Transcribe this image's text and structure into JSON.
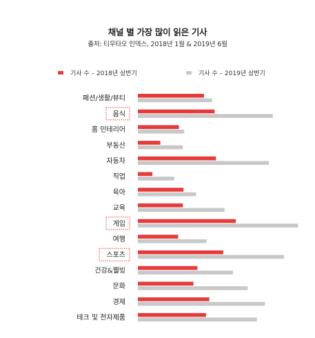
{
  "chart_data": {
    "type": "bar",
    "orientation": "horizontal",
    "title": "채널 별 가장 많이 읽은 기사",
    "subtitle": "출처: 티우타오 인덱스, 2018년 1월 & 2019년 6월",
    "categories": [
      "패션/생활/뷰티",
      "음식",
      "홈 인테리어",
      "부동산",
      "자동차",
      "직업",
      "육아",
      "교육",
      "게임",
      "여행",
      "스포츠",
      "건강&웰빙",
      "문화",
      "경제",
      "테크 및 전자제품"
    ],
    "highlighted_categories": [
      "음식",
      "게임",
      "스포츠"
    ],
    "series": [
      {
        "name": "기사 수 – 2018년 상반기",
        "color": "#e63b3b",
        "values": [
          100,
          116,
          62,
          34,
          118,
          22,
          69,
          68,
          148,
          61,
          129,
          90,
          84,
          108,
          103
        ]
      },
      {
        "name": "기사 수 – 2019년 상반기",
        "color": "#c8c8c8",
        "values": [
          112,
          204,
          70,
          68,
          198,
          55,
          88,
          131,
          242,
          104,
          221,
          144,
          166,
          192,
          180
        ]
      }
    ],
    "xlim": [
      0,
      250
    ],
    "grid": false,
    "legend_position": "top"
  }
}
